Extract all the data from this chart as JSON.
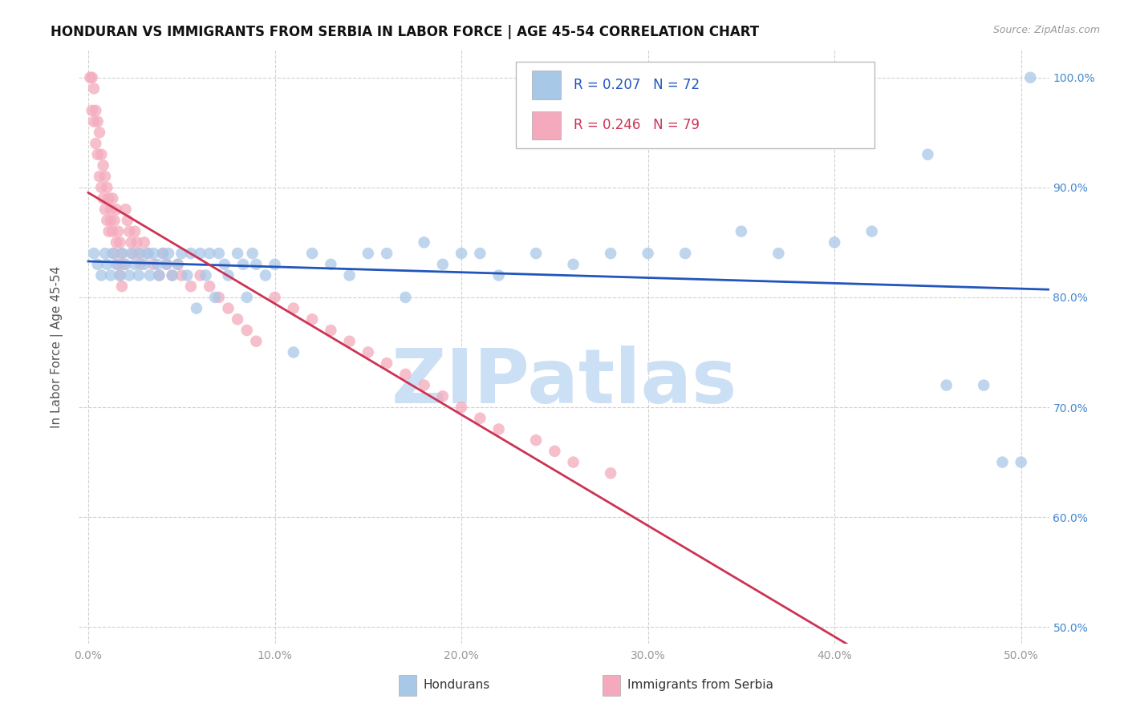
{
  "title": "HONDURAN VS IMMIGRANTS FROM SERBIA IN LABOR FORCE | AGE 45-54 CORRELATION CHART",
  "source": "Source: ZipAtlas.com",
  "ylabel": "In Labor Force | Age 45-54",
  "xmin": -0.005,
  "xmax": 0.515,
  "ymin": 0.485,
  "ymax": 1.025,
  "xticks": [
    0.0,
    0.1,
    0.2,
    0.3,
    0.4,
    0.5
  ],
  "xticklabels": [
    "0.0%",
    "10.0%",
    "20.0%",
    "30.0%",
    "40.0%",
    "50.0%"
  ],
  "yticks": [
    0.5,
    0.6,
    0.7,
    0.8,
    0.9,
    1.0
  ],
  "yticklabels": [
    "50.0%",
    "60.0%",
    "70.0%",
    "80.0%",
    "90.0%",
    "100.0%"
  ],
  "blue_R": 0.207,
  "blue_N": 72,
  "pink_R": 0.246,
  "pink_N": 79,
  "blue_scatter_color": "#a8c8e8",
  "pink_scatter_color": "#f4aabc",
  "blue_line_color": "#2255bb",
  "pink_line_color": "#cc3355",
  "watermark_color": "#cce0f5",
  "legend_label_blue": "Hondurans",
  "legend_label_pink": "Immigrants from Serbia",
  "blue_x": [
    0.003,
    0.005,
    0.007,
    0.009,
    0.01,
    0.012,
    0.013,
    0.015,
    0.017,
    0.018,
    0.02,
    0.022,
    0.023,
    0.025,
    0.027,
    0.028,
    0.03,
    0.032,
    0.033,
    0.035,
    0.037,
    0.038,
    0.04,
    0.042,
    0.043,
    0.045,
    0.048,
    0.05,
    0.053,
    0.055,
    0.058,
    0.06,
    0.063,
    0.065,
    0.068,
    0.07,
    0.073,
    0.075,
    0.08,
    0.083,
    0.085,
    0.088,
    0.09,
    0.095,
    0.1,
    0.11,
    0.12,
    0.13,
    0.14,
    0.15,
    0.16,
    0.17,
    0.18,
    0.19,
    0.2,
    0.21,
    0.22,
    0.24,
    0.26,
    0.28,
    0.3,
    0.32,
    0.35,
    0.37,
    0.4,
    0.42,
    0.45,
    0.46,
    0.48,
    0.49,
    0.5,
    0.505
  ],
  "blue_y": [
    0.84,
    0.83,
    0.82,
    0.84,
    0.83,
    0.82,
    0.84,
    0.83,
    0.82,
    0.84,
    0.83,
    0.82,
    0.84,
    0.83,
    0.82,
    0.84,
    0.83,
    0.84,
    0.82,
    0.84,
    0.83,
    0.82,
    0.84,
    0.83,
    0.84,
    0.82,
    0.83,
    0.84,
    0.82,
    0.84,
    0.79,
    0.84,
    0.82,
    0.84,
    0.8,
    0.84,
    0.83,
    0.82,
    0.84,
    0.83,
    0.8,
    0.84,
    0.83,
    0.82,
    0.83,
    0.75,
    0.84,
    0.83,
    0.82,
    0.84,
    0.84,
    0.8,
    0.85,
    0.83,
    0.84,
    0.84,
    0.82,
    0.84,
    0.83,
    0.84,
    0.84,
    0.84,
    0.86,
    0.84,
    0.85,
    0.86,
    0.93,
    0.72,
    0.72,
    0.65,
    0.65,
    1.0
  ],
  "pink_x": [
    0.001,
    0.002,
    0.002,
    0.003,
    0.003,
    0.004,
    0.004,
    0.005,
    0.005,
    0.006,
    0.006,
    0.007,
    0.007,
    0.008,
    0.008,
    0.009,
    0.009,
    0.01,
    0.01,
    0.011,
    0.011,
    0.012,
    0.012,
    0.013,
    0.013,
    0.014,
    0.014,
    0.015,
    0.015,
    0.016,
    0.016,
    0.017,
    0.017,
    0.018,
    0.018,
    0.019,
    0.02,
    0.021,
    0.022,
    0.023,
    0.024,
    0.025,
    0.026,
    0.027,
    0.028,
    0.03,
    0.032,
    0.035,
    0.038,
    0.04,
    0.042,
    0.045,
    0.048,
    0.05,
    0.055,
    0.06,
    0.065,
    0.07,
    0.075,
    0.08,
    0.085,
    0.09,
    0.1,
    0.11,
    0.12,
    0.13,
    0.14,
    0.15,
    0.16,
    0.17,
    0.18,
    0.19,
    0.2,
    0.21,
    0.22,
    0.24,
    0.25,
    0.26,
    0.28
  ],
  "pink_y": [
    1.0,
    1.0,
    0.97,
    0.99,
    0.96,
    0.97,
    0.94,
    0.96,
    0.93,
    0.95,
    0.91,
    0.93,
    0.9,
    0.92,
    0.89,
    0.91,
    0.88,
    0.9,
    0.87,
    0.89,
    0.86,
    0.88,
    0.87,
    0.89,
    0.86,
    0.87,
    0.84,
    0.88,
    0.85,
    0.86,
    0.83,
    0.85,
    0.82,
    0.84,
    0.81,
    0.83,
    0.88,
    0.87,
    0.86,
    0.85,
    0.84,
    0.86,
    0.85,
    0.84,
    0.83,
    0.85,
    0.84,
    0.83,
    0.82,
    0.84,
    0.83,
    0.82,
    0.83,
    0.82,
    0.81,
    0.82,
    0.81,
    0.8,
    0.79,
    0.78,
    0.77,
    0.76,
    0.8,
    0.79,
    0.78,
    0.77,
    0.76,
    0.75,
    0.74,
    0.73,
    0.72,
    0.71,
    0.7,
    0.69,
    0.68,
    0.67,
    0.66,
    0.65,
    0.64
  ]
}
